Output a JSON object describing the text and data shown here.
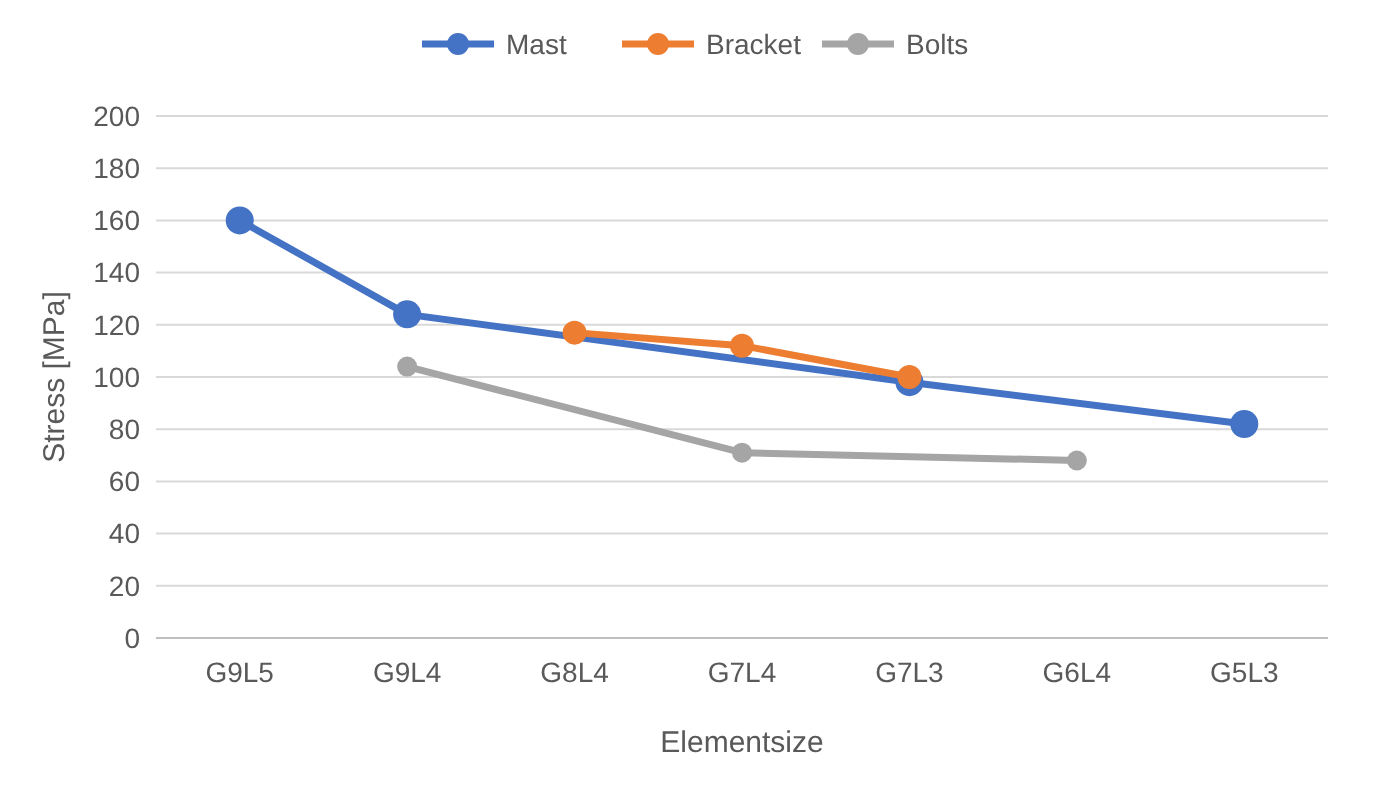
{
  "chart_data": {
    "type": "line",
    "xlabel": "Elementsize",
    "ylabel": "Stress [MPa]",
    "categories": [
      "G9L5",
      "G9L4",
      "G8L4",
      "G7L4",
      "G7L3",
      "G6L4",
      "G5L3"
    ],
    "series": [
      {
        "name": "Mast",
        "color": "#4472c4",
        "values": [
          160,
          124,
          null,
          null,
          98,
          null,
          82
        ]
      },
      {
        "name": "Bracket",
        "color": "#ed7d31",
        "values": [
          null,
          null,
          117,
          112,
          100,
          null,
          null
        ]
      },
      {
        "name": "Bolts",
        "color": "#a5a5a5",
        "values": [
          null,
          104,
          null,
          71,
          null,
          68,
          null
        ]
      }
    ],
    "ylim": [
      0,
      200
    ],
    "yticks": [
      0,
      20,
      40,
      60,
      80,
      100,
      120,
      140,
      160,
      180,
      200
    ],
    "grid": "y",
    "legend": "top",
    "marker": "circle",
    "line_style": "solid"
  }
}
